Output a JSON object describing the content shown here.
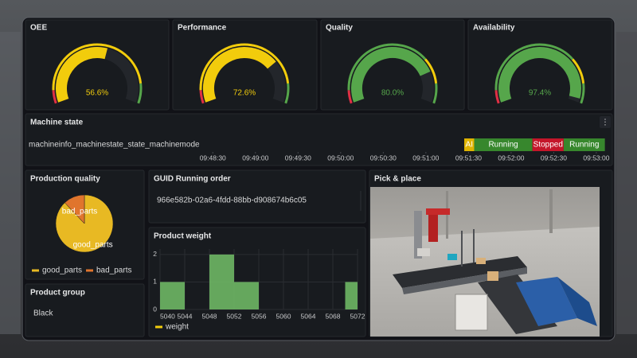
{
  "gauge_range": [
    0,
    100
  ],
  "gauges": [
    {
      "title": "OEE",
      "value": 56.6,
      "label": "56.6%",
      "color": "#f2cc0c",
      "bands": [
        {
          "from": 0,
          "color": "#e02f44"
        },
        {
          "from": 8,
          "color": "#f2cc0c"
        },
        {
          "from": 88,
          "color": "#56a64b"
        }
      ]
    },
    {
      "title": "Performance",
      "value": 72.6,
      "label": "72.6%",
      "color": "#f2cc0c",
      "bands": [
        {
          "from": 0,
          "color": "#e02f44"
        },
        {
          "from": 8,
          "color": "#f2cc0c"
        },
        {
          "from": 88,
          "color": "#56a64b"
        }
      ]
    },
    {
      "title": "Quality",
      "value": 80.0,
      "label": "80.0%",
      "color": "#56a64b",
      "bands": [
        {
          "from": 0,
          "color": "#e02f44"
        },
        {
          "from": 8,
          "color": "#56a64b"
        },
        {
          "from": 72,
          "color": "#f2cc0c"
        },
        {
          "from": 88,
          "color": "#56a64b"
        }
      ]
    },
    {
      "title": "Availability",
      "value": 97.4,
      "label": "97.4%",
      "color": "#56a64b",
      "bands": [
        {
          "from": 0,
          "color": "#e02f44"
        },
        {
          "from": 8,
          "color": "#56a64b"
        },
        {
          "from": 72,
          "color": "#f2cc0c"
        },
        {
          "from": 88,
          "color": "#56a64b"
        }
      ]
    }
  ],
  "machine_state": {
    "title": "Machine state",
    "series_name": "machineinfo_machinestate_state_machinemode",
    "xlim": [
      "09:48:08",
      "09:53:09"
    ],
    "xticks": [
      "09:48:30",
      "09:49:00",
      "09:49:30",
      "09:50:00",
      "09:50:30",
      "09:51:00",
      "09:51:30",
      "09:52:00",
      "09:52:30",
      "09:53:00"
    ],
    "segments": [
      {
        "state": "AI",
        "start": "09:51:27",
        "end": "09:51:34",
        "color": "#e0b400"
      },
      {
        "state": "Running",
        "start": "09:51:34",
        "end": "09:52:15",
        "color": "#37872d"
      },
      {
        "state": "Stopped",
        "start": "09:52:15",
        "end": "09:52:37",
        "color": "#c4162a"
      },
      {
        "state": "Running",
        "start": "09:52:37",
        "end": "09:53:06",
        "color": "#37872d"
      }
    ]
  },
  "production_quality": {
    "title": "Production quality",
    "type": "pie",
    "series": [
      {
        "name": "good_parts",
        "value": 88,
        "color": "#e8b923"
      },
      {
        "name": "bad_parts",
        "value": 12,
        "color": "#e0752d"
      }
    ]
  },
  "guid": {
    "title": "GUID Running order",
    "value": "966e582b-02a6-4fdd-88bb-d908674b6c05"
  },
  "product_weight": {
    "title": "Product weight",
    "type": "histogram",
    "color": "#73bf69",
    "legend": "weight",
    "bins": [
      5040,
      5042,
      5044,
      5046,
      5048,
      5050,
      5052,
      5054,
      5056,
      5058,
      5060,
      5062,
      5064,
      5066,
      5068,
      5070,
      5072
    ],
    "counts": [
      1,
      1,
      0,
      0,
      2,
      2,
      1,
      1,
      0,
      0,
      0,
      0,
      0,
      0,
      0,
      1
    ],
    "xlim": [
      5040,
      5072
    ],
    "xticks": [
      5040,
      5044,
      5048,
      5052,
      5056,
      5060,
      5064,
      5068,
      5072
    ],
    "ylim": [
      0,
      2.2
    ],
    "yticks": [
      0,
      1,
      2
    ]
  },
  "product_group": {
    "title": "Product group",
    "value": "Black"
  },
  "pick_place": {
    "title": "Pick & place"
  }
}
